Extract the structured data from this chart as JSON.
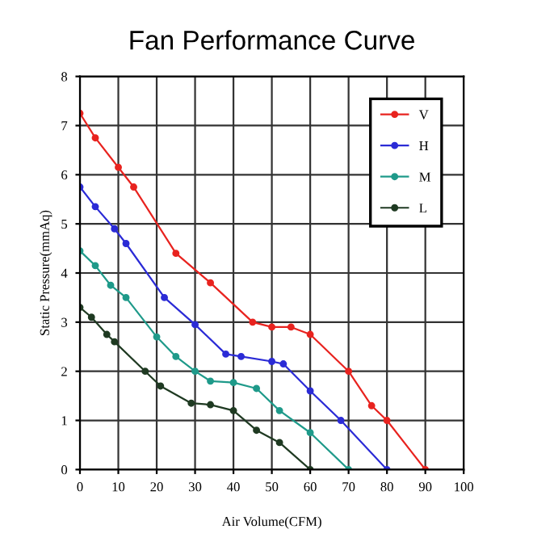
{
  "chart_data": {
    "type": "line",
    "title": "Fan Performance Curve",
    "xlabel": "Air Volume(CFM)",
    "ylabel": "Static Pressure(mmAq)",
    "xlim": [
      0,
      100
    ],
    "xticks": [
      0,
      10,
      20,
      30,
      40,
      50,
      60,
      70,
      80,
      90,
      100
    ],
    "ylim": [
      0,
      8
    ],
    "yticks": [
      0,
      1,
      2,
      3,
      4,
      5,
      6,
      7,
      8
    ],
    "grid": true,
    "legend": "top right",
    "marker": "circle",
    "series": [
      {
        "name": "V",
        "color": "#e8231f",
        "x": [
          0,
          4,
          10,
          14,
          25,
          34,
          45,
          50,
          55,
          60,
          70,
          76,
          80,
          90
        ],
        "values": [
          7.25,
          6.75,
          6.15,
          5.75,
          4.4,
          3.8,
          3.0,
          2.9,
          2.9,
          2.75,
          2.0,
          1.3,
          1.0,
          0
        ]
      },
      {
        "name": "H",
        "color": "#2b2bd6",
        "x": [
          0,
          4,
          9,
          12,
          22,
          30,
          38,
          42,
          50,
          53,
          60,
          68,
          80
        ],
        "values": [
          5.75,
          5.35,
          4.9,
          4.6,
          3.5,
          2.95,
          2.35,
          2.3,
          2.2,
          2.15,
          1.6,
          1.0,
          0
        ]
      },
      {
        "name": "M",
        "color": "#1f9a8a",
        "x": [
          0,
          4,
          8,
          12,
          20,
          25,
          30,
          34,
          40,
          46,
          52,
          60,
          70
        ],
        "values": [
          4.45,
          4.15,
          3.75,
          3.5,
          2.7,
          2.3,
          2.0,
          1.8,
          1.77,
          1.65,
          1.2,
          0.75,
          0
        ]
      },
      {
        "name": "L",
        "color": "#1f3a22",
        "x": [
          0,
          3,
          7,
          9,
          17,
          21,
          29,
          34,
          40,
          46,
          52,
          60
        ],
        "values": [
          3.3,
          3.1,
          2.75,
          2.6,
          2.0,
          1.7,
          1.35,
          1.32,
          1.2,
          0.8,
          0.55,
          0
        ]
      }
    ]
  }
}
